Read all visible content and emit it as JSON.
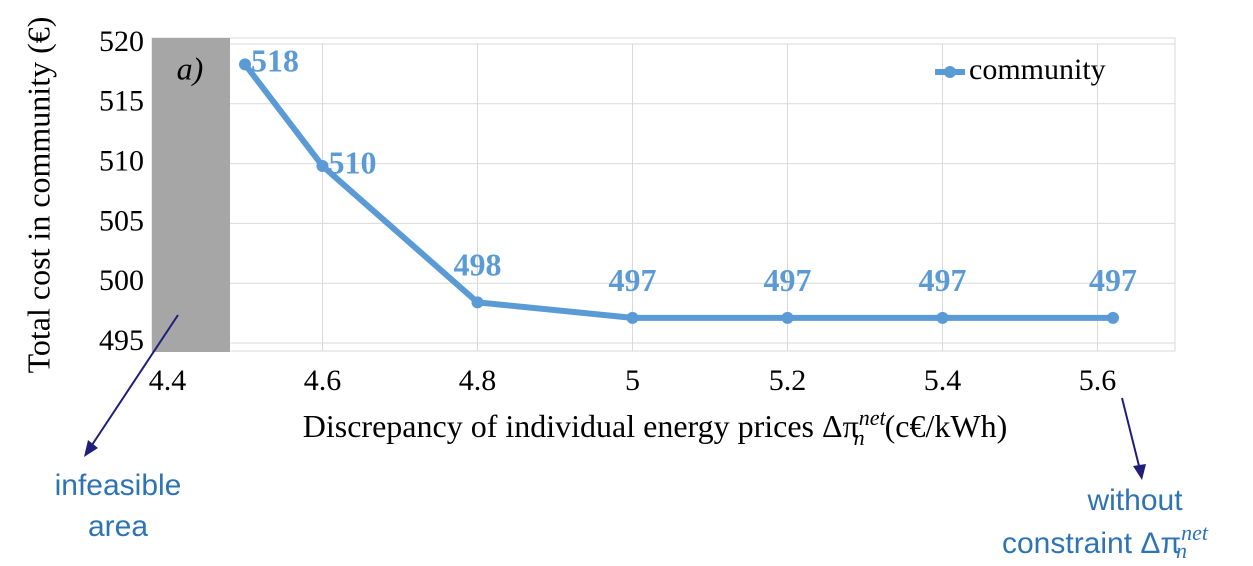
{
  "chart_data": {
    "type": "line",
    "x": [
      4.5,
      4.6,
      4.8,
      5,
      5.2,
      5.4,
      5.62
    ],
    "series": [
      {
        "name": "community",
        "color": "#5b9bd5",
        "values": [
          518.3,
          509.8,
          498.4,
          497.1,
          497.1,
          497.1,
          497.1
        ],
        "value_labels": [
          "518",
          "510",
          "498",
          "497",
          "497",
          "497",
          "497"
        ]
      }
    ],
    "xlim": [
      4.38,
      5.7
    ],
    "xticks": [
      4.4,
      4.6,
      4.8,
      5,
      5.2,
      5.4,
      5.6
    ],
    "ylim": [
      495,
      520
    ],
    "yticks": [
      495,
      500,
      505,
      510,
      515,
      520
    ],
    "grid": true,
    "legend": "upper right",
    "y_label": "Total cost in community (€)",
    "x_label": {
      "text": "Discrepancy of individual energy prices Δπ",
      "sub": "n",
      "sup": "net",
      "unit": "(c€/kWh)"
    },
    "panel_label": "a)",
    "annotations": {
      "infeasible": [
        "infeasible",
        "area"
      ],
      "unconstrained": {
        "line1": "without",
        "line2": "constraint Δπ",
        "sub": "n",
        "sup": "net"
      }
    }
  }
}
